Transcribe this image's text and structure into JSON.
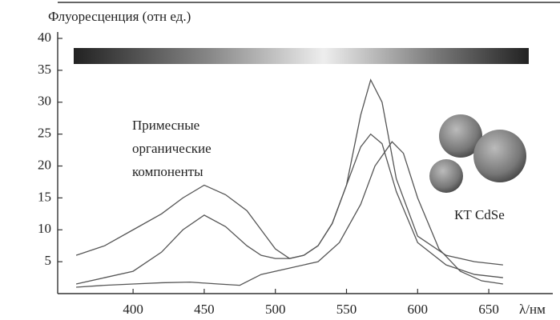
{
  "chart_data": {
    "type": "line",
    "title": "Флуоресценция (отн ед.)",
    "x_label": "λ/нм",
    "annotations": [
      "Примесные",
      "органические",
      "компоненты"
    ],
    "label_qd": "КТ CdSe",
    "xlim": [
      347,
      695
    ],
    "ylim": [
      0,
      40
    ],
    "xticks": [
      400,
      450,
      500,
      550,
      600,
      650
    ],
    "yticks": [
      5,
      10,
      15,
      20,
      25,
      30,
      35,
      40
    ],
    "grid": false,
    "series": [
      {
        "color": "#555555",
        "x": [
          360,
          380,
          400,
          420,
          435,
          450,
          465,
          480,
          490,
          500,
          510,
          520,
          530,
          540,
          550,
          560,
          567,
          575,
          585,
          600,
          620,
          640,
          660
        ],
        "values": [
          6,
          7.5,
          10,
          12.5,
          15,
          17,
          15.5,
          13,
          10,
          7,
          5.5,
          6,
          7.5,
          11,
          17,
          28,
          33.5,
          30,
          18,
          9,
          6,
          5,
          4.5
        ]
      },
      {
        "color": "#555555",
        "x": [
          360,
          380,
          400,
          420,
          435,
          450,
          465,
          480,
          490,
          500,
          510,
          520,
          530,
          540,
          550,
          560,
          567,
          575,
          585,
          600,
          620,
          640,
          660
        ],
        "values": [
          1.5,
          2.5,
          3.5,
          6.5,
          10,
          12.3,
          10.5,
          7.5,
          6,
          5.5,
          5.5,
          6,
          7.5,
          11,
          17,
          23,
          25,
          23.5,
          16,
          8,
          4.5,
          3,
          2.5
        ]
      },
      {
        "color": "#555555",
        "x": [
          360,
          380,
          400,
          420,
          440,
          460,
          475,
          490,
          510,
          530,
          545,
          560,
          570,
          582,
          590,
          600,
          615,
          630,
          645,
          660
        ],
        "values": [
          1,
          1.3,
          1.5,
          1.7,
          1.8,
          1.5,
          1.3,
          3,
          4,
          5,
          8,
          14,
          20,
          23.8,
          22,
          15,
          7,
          3.5,
          2,
          1.5
        ]
      }
    ]
  }
}
